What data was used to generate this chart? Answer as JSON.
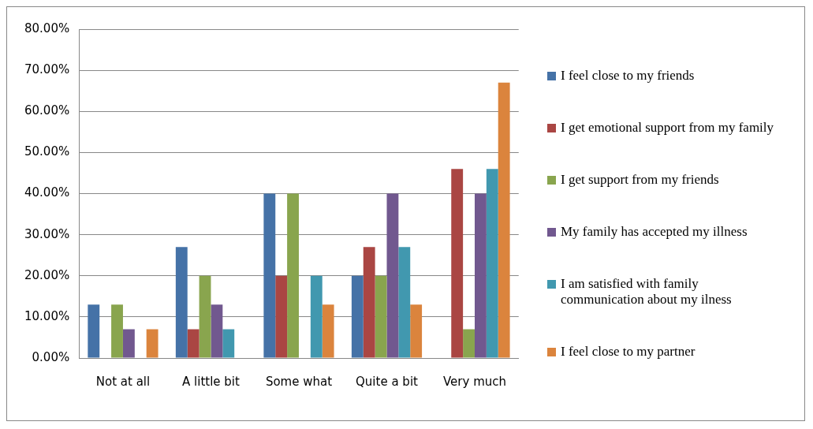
{
  "chart_data": {
    "type": "bar",
    "categories": [
      "Not at all",
      "A little bit",
      "Some what",
      "Quite a bit",
      "Very much"
    ],
    "series": [
      {
        "name": "I feel close to my friends",
        "color": "#4572a7",
        "values": [
          13,
          27,
          40,
          20,
          0
        ]
      },
      {
        "name": "I get emotional support from my family",
        "color": "#aa4643",
        "values": [
          0,
          7,
          20,
          27,
          46
        ]
      },
      {
        "name": "I get support from my friends",
        "color": "#89a54e",
        "values": [
          13,
          20,
          40,
          20,
          7
        ]
      },
      {
        "name": "My family has accepted my illness",
        "color": "#71588f",
        "values": [
          7,
          13,
          0,
          40,
          40
        ]
      },
      {
        "name": "I am satisfied with family communication about my ilness",
        "color": "#4198af",
        "values": [
          0,
          7,
          20,
          27,
          46
        ]
      },
      {
        "name": "I feel close to my partner",
        "color": "#db843d",
        "values": [
          7,
          0,
          13,
          13,
          67
        ]
      }
    ],
    "ylim": [
      0,
      80
    ],
    "yticks": [
      {
        "value": 0,
        "label": "0.00%"
      },
      {
        "value": 10,
        "label": "10.00%"
      },
      {
        "value": 20,
        "label": "20.00%"
      },
      {
        "value": 30,
        "label": "30.00%"
      },
      {
        "value": 40,
        "label": "40.00%"
      },
      {
        "value": 50,
        "label": "50.00%"
      },
      {
        "value": 60,
        "label": "60.00%"
      },
      {
        "value": 70,
        "label": "70.00%"
      },
      {
        "value": 80,
        "label": "80.00%"
      }
    ],
    "grid": "y",
    "legend": "right"
  }
}
